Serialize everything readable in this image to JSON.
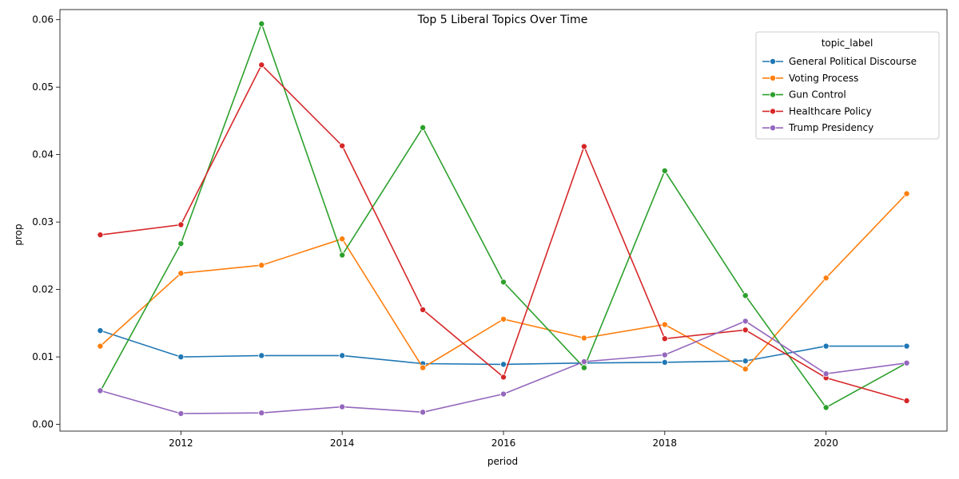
{
  "chart_data": {
    "type": "line",
    "title": "Top 5 Liberal Topics Over Time",
    "xlabel": "period",
    "ylabel": "prop",
    "x": [
      2011,
      2012,
      2013,
      2014,
      2015,
      2016,
      2017,
      2018,
      2019,
      2020,
      2021
    ],
    "xlim": [
      2010.5,
      2021.5
    ],
    "ylim": [
      -0.001,
      0.0615
    ],
    "xticks": [
      2012,
      2014,
      2016,
      2018,
      2020
    ],
    "yticks": [
      0.0,
      0.01,
      0.02,
      0.03,
      0.04,
      0.05,
      0.06
    ],
    "ytick_labels": [
      "0.00",
      "0.01",
      "0.02",
      "0.03",
      "0.04",
      "0.05",
      "0.06"
    ],
    "grid": false,
    "legend": {
      "title": "topic_label",
      "placement": "top-right"
    },
    "series": [
      {
        "name": "General Political Discourse",
        "color": "#1f77b4",
        "values": [
          0.0139,
          0.01,
          0.0102,
          0.0102,
          0.009,
          0.0089,
          0.0091,
          0.0092,
          0.0094,
          0.0116,
          0.0116
        ]
      },
      {
        "name": "Voting Process",
        "color": "#ff7f0e",
        "values": [
          0.0116,
          0.0224,
          0.0236,
          0.0275,
          0.0084,
          0.0156,
          0.0128,
          0.0148,
          0.0082,
          0.0217,
          0.0342
        ]
      },
      {
        "name": "Gun Control",
        "color": "#2ca02c",
        "values": [
          0.0049,
          0.0268,
          0.0594,
          0.0251,
          0.044,
          0.0211,
          0.0084,
          0.0376,
          0.0191,
          0.0025,
          0.0091
        ]
      },
      {
        "name": "Healthcare Policy",
        "color": "#d62728",
        "values": [
          0.0281,
          0.0296,
          0.0533,
          0.0413,
          0.017,
          0.007,
          0.0412,
          0.0127,
          0.014,
          0.0069,
          0.0035
        ]
      },
      {
        "name": "Trump Presidency",
        "color": "#9467bd",
        "values": [
          0.005,
          0.0016,
          0.0017,
          0.0026,
          0.0018,
          0.0045,
          0.0093,
          0.0103,
          0.0153,
          0.0075,
          0.0091
        ]
      }
    ]
  }
}
